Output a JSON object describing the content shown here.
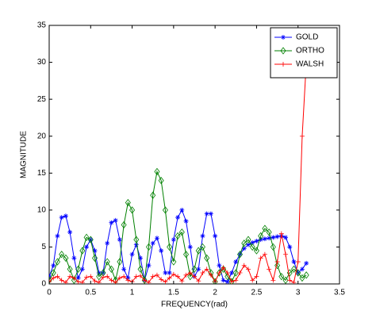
{
  "chart_data": {
    "type": "line",
    "xlabel": "FREQUENCY(rad)",
    "ylabel": "MAGNITUDE",
    "x": [
      0,
      0.05,
      0.1,
      0.15,
      0.2,
      0.25,
      0.3,
      0.35,
      0.4,
      0.45,
      0.5,
      0.55,
      0.6,
      0.65,
      0.7,
      0.75,
      0.8,
      0.85,
      0.9,
      0.95,
      1.0,
      1.05,
      1.1,
      1.15,
      1.2,
      1.25,
      1.3,
      1.35,
      1.4,
      1.45,
      1.5,
      1.55,
      1.6,
      1.65,
      1.7,
      1.75,
      1.8,
      1.85,
      1.9,
      1.95,
      2.0,
      2.05,
      2.1,
      2.15,
      2.2,
      2.25,
      2.3,
      2.35,
      2.4,
      2.45,
      2.5,
      2.55,
      2.6,
      2.65,
      2.7,
      2.75,
      2.8,
      2.85,
      2.9,
      2.95,
      3.0,
      3.05,
      3.1
    ],
    "series": [
      {
        "name": "GOLD",
        "color": "#0000ff",
        "marker": "star",
        "values": [
          1,
          2.5,
          6.5,
          9,
          9.2,
          7,
          3.5,
          0.8,
          2,
          5,
          6,
          4.5,
          1.5,
          1.5,
          5.5,
          8.3,
          8.6,
          6,
          2,
          0.8,
          4,
          5.3,
          3.5,
          0.5,
          2.5,
          5.5,
          6.2,
          4.5,
          1.5,
          1.5,
          6,
          9,
          10,
          8.5,
          5,
          1,
          2,
          6.5,
          9.5,
          9.5,
          6.5,
          2.5,
          0.5,
          0.3,
          1.5,
          3,
          4,
          4.8,
          5.3,
          5.6,
          5.8,
          6,
          6.1,
          6.2,
          6.3,
          6.4,
          6.5,
          6.3,
          5,
          3,
          1.5,
          2,
          2.8
        ]
      },
      {
        "name": "ORTHO",
        "color": "#008000",
        "marker": "diamond",
        "values": [
          0.5,
          1.5,
          3,
          4,
          3.5,
          2,
          0.5,
          2,
          4.5,
          6.3,
          6,
          3.5,
          1,
          1.5,
          3,
          2,
          0.5,
          3,
          8,
          11,
          10,
          6,
          2,
          0.5,
          5,
          12,
          15.2,
          14,
          10,
          5,
          3,
          6.5,
          7,
          4,
          1,
          2,
          4.5,
          5,
          3.5,
          1.5,
          0.3,
          1.5,
          2,
          1,
          0.3,
          1.5,
          4,
          5.5,
          6,
          5,
          4.5,
          6.5,
          7.5,
          7,
          5,
          2.5,
          1,
          0.5,
          1.5,
          2,
          1.5,
          0.8,
          1.2
        ]
      },
      {
        "name": "WALSH",
        "color": "#ff0000",
        "marker": "plus",
        "values": [
          0.3,
          0.8,
          1,
          0.5,
          0.2,
          1,
          0.8,
          0.3,
          0.2,
          0.9,
          1,
          0.4,
          0.2,
          0.9,
          1,
          0.5,
          0.2,
          0.8,
          1,
          0.5,
          0.3,
          1,
          1.1,
          0.5,
          0.2,
          1,
          1.2,
          0.6,
          0.3,
          0.8,
          1.3,
          1,
          0.4,
          1.2,
          1.5,
          1,
          0.4,
          1.5,
          2,
          1.2,
          0.3,
          1.5,
          2.2,
          1.5,
          0.3,
          0.5,
          1.5,
          2.5,
          2,
          0.5,
          1,
          3.5,
          4,
          2,
          0.5,
          3,
          6.8,
          4,
          0.5,
          0.2,
          3,
          20,
          30
        ]
      }
    ],
    "xlim": [
      0,
      3.5
    ],
    "xticks": [
      0,
      0.5,
      1,
      1.5,
      2,
      2.5,
      3,
      3.5
    ],
    "ylim": [
      0,
      35
    ],
    "yticks": [
      0,
      5,
      10,
      15,
      20,
      25,
      30,
      35
    ],
    "grid": false,
    "legend": "northeast"
  }
}
